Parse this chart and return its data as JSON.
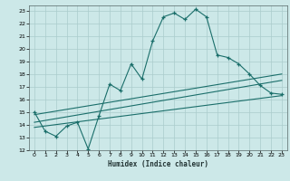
{
  "bg_color": "#cce8e8",
  "grid_color": "#aacccc",
  "line_color": "#1a6e6a",
  "xlabel": "Humidex (Indice chaleur)",
  "xlim": [
    -0.5,
    23.5
  ],
  "ylim": [
    12,
    23.4
  ],
  "yticks": [
    12,
    13,
    14,
    15,
    16,
    17,
    18,
    19,
    20,
    21,
    22,
    23
  ],
  "xticks": [
    0,
    1,
    2,
    3,
    4,
    5,
    6,
    7,
    8,
    9,
    10,
    11,
    12,
    13,
    14,
    15,
    16,
    17,
    18,
    19,
    20,
    21,
    22,
    23
  ],
  "curve1_x": [
    0,
    1,
    2,
    3,
    4,
    5,
    6,
    7,
    8,
    9,
    10,
    11,
    12,
    13,
    14,
    15,
    16,
    17,
    18,
    19,
    20,
    21,
    22,
    23
  ],
  "curve1_y": [
    15.0,
    13.5,
    13.1,
    13.9,
    14.2,
    12.1,
    14.7,
    17.2,
    16.7,
    18.8,
    17.6,
    20.6,
    22.5,
    22.8,
    22.3,
    23.1,
    22.5,
    19.5,
    19.3,
    18.8,
    18.0,
    17.1,
    16.5,
    16.4
  ],
  "curve2_x": [
    0,
    23
  ],
  "curve2_y": [
    13.8,
    16.3
  ],
  "curve3_x": [
    0,
    23
  ],
  "curve3_y": [
    14.2,
    17.5
  ],
  "curve4_x": [
    0,
    23
  ],
  "curve4_y": [
    14.8,
    18.0
  ]
}
